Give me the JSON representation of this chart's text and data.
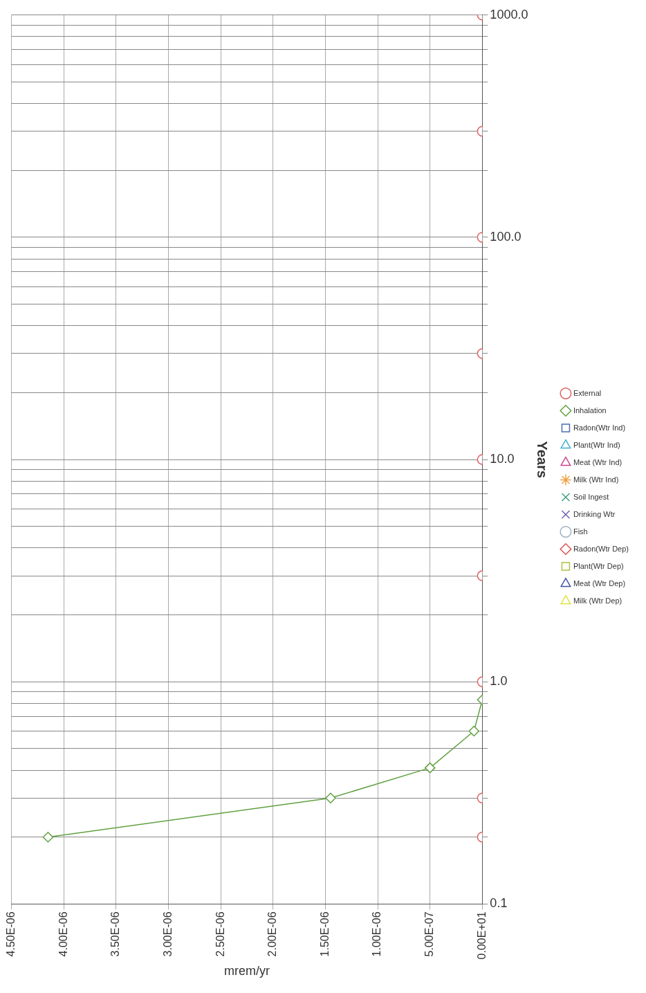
{
  "chart_data": {
    "type": "line",
    "xlabel": "mrem/yr",
    "ylabel": "Years",
    "log": "y",
    "grid": true,
    "legend": "right",
    "line_style": "solid",
    "ylim": [
      0.1,
      1000
    ],
    "yticks": [
      0.1,
      {
        "value": 0.2,
        "label": null
      },
      {
        "value": 0.3,
        "label": null
      },
      {
        "value": 0.4,
        "label": null
      },
      {
        "value": 0.5,
        "label": null
      },
      {
        "value": 0.6,
        "label": null
      },
      {
        "value": 0.7,
        "label": null
      },
      {
        "value": 0.8,
        "label": null
      },
      {
        "value": 0.9,
        "label": null
      },
      {
        "value": 1,
        "label": "1.0"
      },
      {
        "value": 2,
        "label": null
      },
      {
        "value": 3,
        "label": null
      },
      {
        "value": 4,
        "label": null
      },
      {
        "value": 5,
        "label": null
      },
      {
        "value": 6,
        "label": null
      },
      {
        "value": 7,
        "label": null
      },
      {
        "value": 8,
        "label": null
      },
      {
        "value": 9,
        "label": null
      },
      {
        "value": 10,
        "label": "10.0"
      },
      {
        "value": 20,
        "label": null
      },
      {
        "value": 30,
        "label": null
      },
      {
        "value": 40,
        "label": null
      },
      {
        "value": 50,
        "label": null
      },
      {
        "value": 60,
        "label": null
      },
      {
        "value": 70,
        "label": null
      },
      {
        "value": 80,
        "label": null
      },
      {
        "value": 90,
        "label": null
      },
      {
        "value": 100,
        "label": "100.0"
      },
      {
        "value": 200,
        "label": null
      },
      {
        "value": 300,
        "label": null
      },
      {
        "value": 400,
        "label": null
      },
      {
        "value": 500,
        "label": null
      },
      {
        "value": 600,
        "label": null
      },
      {
        "value": 700,
        "label": null
      },
      {
        "value": 800,
        "label": null
      },
      {
        "value": 900,
        "label": null
      },
      {
        "value": 1000,
        "label": "1000.0"
      }
    ],
    "xlim": [
      4.5e-06,
      0
    ],
    "xticks": [
      {
        "value": 4.5e-06,
        "label": "4.50E-06"
      },
      {
        "value": 4e-06,
        "label": "4.00E-06"
      },
      {
        "value": 3.5e-06,
        "label": "3.50E-06"
      },
      {
        "value": 3e-06,
        "label": "3.00E-06"
      },
      {
        "value": 2.5e-06,
        "label": "2.50E-06"
      },
      {
        "value": 2e-06,
        "label": "2.00E-06"
      },
      {
        "value": 1.5e-06,
        "label": "1.50E-06"
      },
      {
        "value": 1e-06,
        "label": "1.00E-06"
      },
      {
        "value": 5e-07,
        "label": "5.00E-07"
      },
      {
        "value": 0,
        "label": "0.00E+01"
      }
    ],
    "series": [
      {
        "name": "External",
        "type": "scatter",
        "color": "#e06060",
        "marker": "circle",
        "x": [
          0,
          0,
          0,
          0,
          0,
          0,
          0,
          0,
          0
        ],
        "values": [
          0.2,
          0.3,
          1,
          3,
          10,
          30,
          100,
          300,
          1000
        ]
      },
      {
        "name": "Inhalation",
        "color": "#60a040",
        "marker": "diamond",
        "x": [
          4.15e-06,
          1.45e-06,
          5e-07,
          8e-08,
          0
        ],
        "values": [
          0.2,
          0.3,
          0.41,
          0.6,
          0.83
        ]
      },
      {
        "name": "Radon(Wtr Ind)",
        "color": "#4a6fb0",
        "marker": "square",
        "values": [
          null
        ]
      },
      {
        "name": "Plant(Wtr Ind)",
        "color": "#40b0d0",
        "marker": "triangle",
        "values": [
          null
        ]
      },
      {
        "name": "Meat (Wtr Ind)",
        "color": "#d04090",
        "marker": "triangle",
        "values": [
          null
        ]
      },
      {
        "name": "Milk (Wtr Ind)",
        "color": "#f0a040",
        "marker": "star",
        "values": [
          null
        ]
      },
      {
        "name": "Soil Ingest",
        "color": "#40a080",
        "marker": "cross",
        "values": [
          null
        ]
      },
      {
        "name": "Drinking Wtr",
        "color": "#7060b0",
        "marker": "cross",
        "values": [
          null
        ]
      },
      {
        "name": "Fish",
        "color": "#a0b0c0",
        "marker": "circle",
        "values": [
          null
        ]
      },
      {
        "name": "Radon(Wtr Dep)",
        "color": "#e05050",
        "marker": "diamond",
        "values": [
          null
        ]
      },
      {
        "name": "Plant(Wtr Dep)",
        "color": "#b0c040",
        "marker": "square",
        "values": [
          null
        ]
      },
      {
        "name": "Meat (Wtr Dep)",
        "color": "#4050a0",
        "marker": "triangle",
        "values": [
          null
        ]
      },
      {
        "name": "Milk (Wtr Dep)",
        "color": "#e0e040",
        "marker": "triangle",
        "values": [
          null
        ]
      }
    ]
  }
}
